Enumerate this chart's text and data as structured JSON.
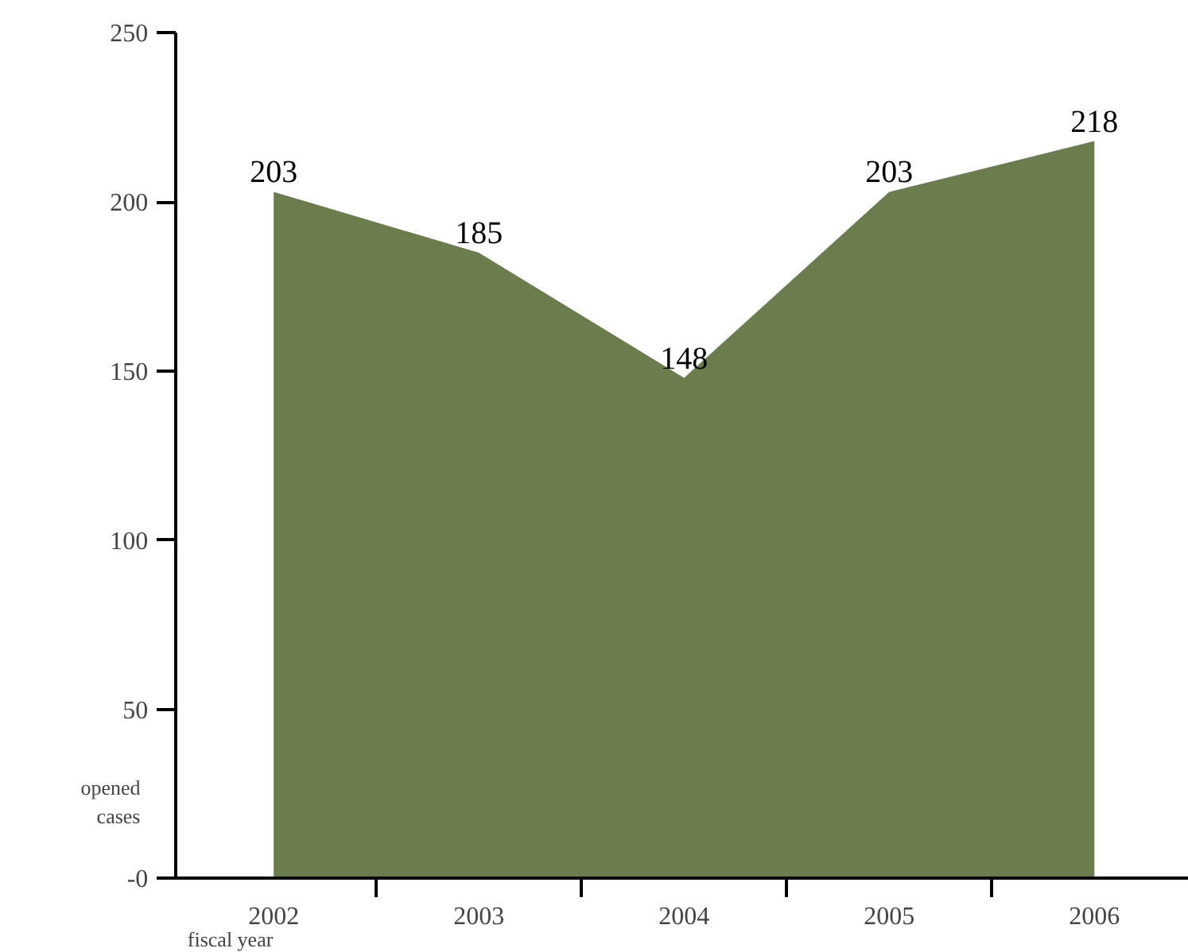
{
  "chart_data": {
    "type": "area",
    "categories": [
      "2002",
      "2003",
      "2004",
      "2005",
      "2006"
    ],
    "values": [
      203,
      185,
      148,
      203,
      218
    ],
    "color": "#6b7d4c",
    "data_labels": true,
    "ylim": [
      0,
      250
    ],
    "yticks": [
      {
        "value": 0,
        "label": "-0"
      },
      50,
      100,
      150,
      200,
      250
    ],
    "xlabel": "fiscal year",
    "ylabel": "opened cases",
    "grid": false
  }
}
